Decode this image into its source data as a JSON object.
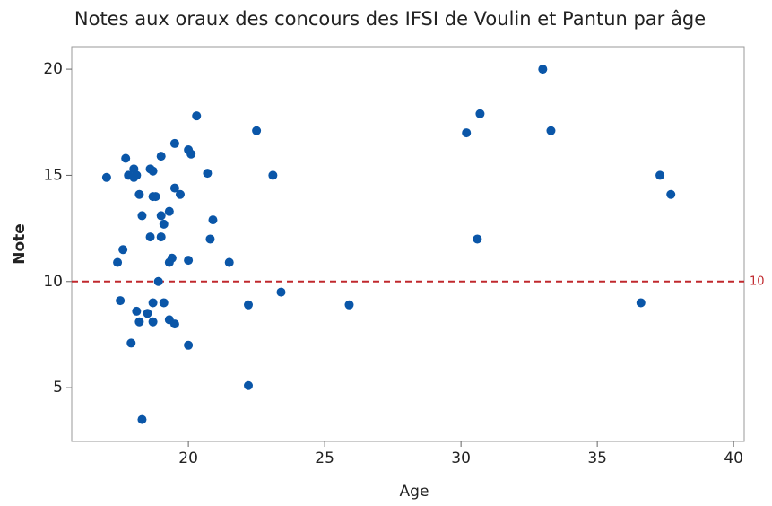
{
  "chart_data": {
    "type": "scatter",
    "title": "Notes aux oraux des concours des IFSI de Voulin et Pantun par âge",
    "x_label": "Age",
    "y_label": "Note",
    "xlim": [
      15.72,
      40.39
    ],
    "ylim": [
      2.47,
      21.06
    ],
    "xticks": [
      20,
      25,
      30,
      35,
      40
    ],
    "yticks": [
      5,
      10,
      15,
      20
    ],
    "reference_line": 10,
    "reference_color": "#c0282d",
    "series": [
      {
        "name": "Note",
        "color": "#0a56a8",
        "x": [
          17.0,
          17.4,
          17.5,
          17.6,
          17.7,
          17.8,
          17.9,
          18.0,
          18.0,
          18.1,
          18.2,
          18.1,
          18.2,
          18.3,
          18.3,
          18.5,
          18.6,
          18.6,
          18.7,
          18.7,
          18.7,
          18.7,
          18.8,
          18.9,
          19.0,
          19.0,
          19.0,
          19.1,
          19.1,
          19.3,
          19.3,
          19.3,
          19.4,
          19.5,
          19.5,
          19.5,
          19.7,
          20.0,
          20.0,
          20.0,
          20.1,
          20.3,
          20.7,
          20.8,
          20.9,
          21.5,
          22.2,
          22.2,
          22.5,
          23.1,
          23.4,
          25.9,
          30.2,
          30.6,
          30.7,
          33.0,
          33.3,
          36.6,
          37.3,
          37.7
        ],
        "values": [
          14.9,
          10.9,
          9.1,
          11.5,
          15.8,
          15.0,
          7.1,
          15.3,
          14.9,
          15.0,
          14.1,
          8.6,
          8.1,
          13.1,
          3.5,
          8.5,
          15.3,
          12.1,
          15.2,
          14.0,
          9.0,
          8.1,
          14.0,
          10.0,
          15.9,
          13.1,
          12.1,
          12.7,
          9.0,
          8.2,
          13.3,
          10.9,
          11.1,
          16.5,
          8.0,
          14.4,
          14.1,
          16.2,
          11.0,
          7.0,
          16.0,
          17.8,
          15.1,
          12.0,
          12.9,
          10.9,
          8.9,
          5.1,
          17.1,
          15.0,
          9.5,
          8.9,
          17.0,
          12.0,
          17.9,
          20.0,
          17.1,
          9.0,
          15.0,
          14.1
        ]
      }
    ]
  }
}
